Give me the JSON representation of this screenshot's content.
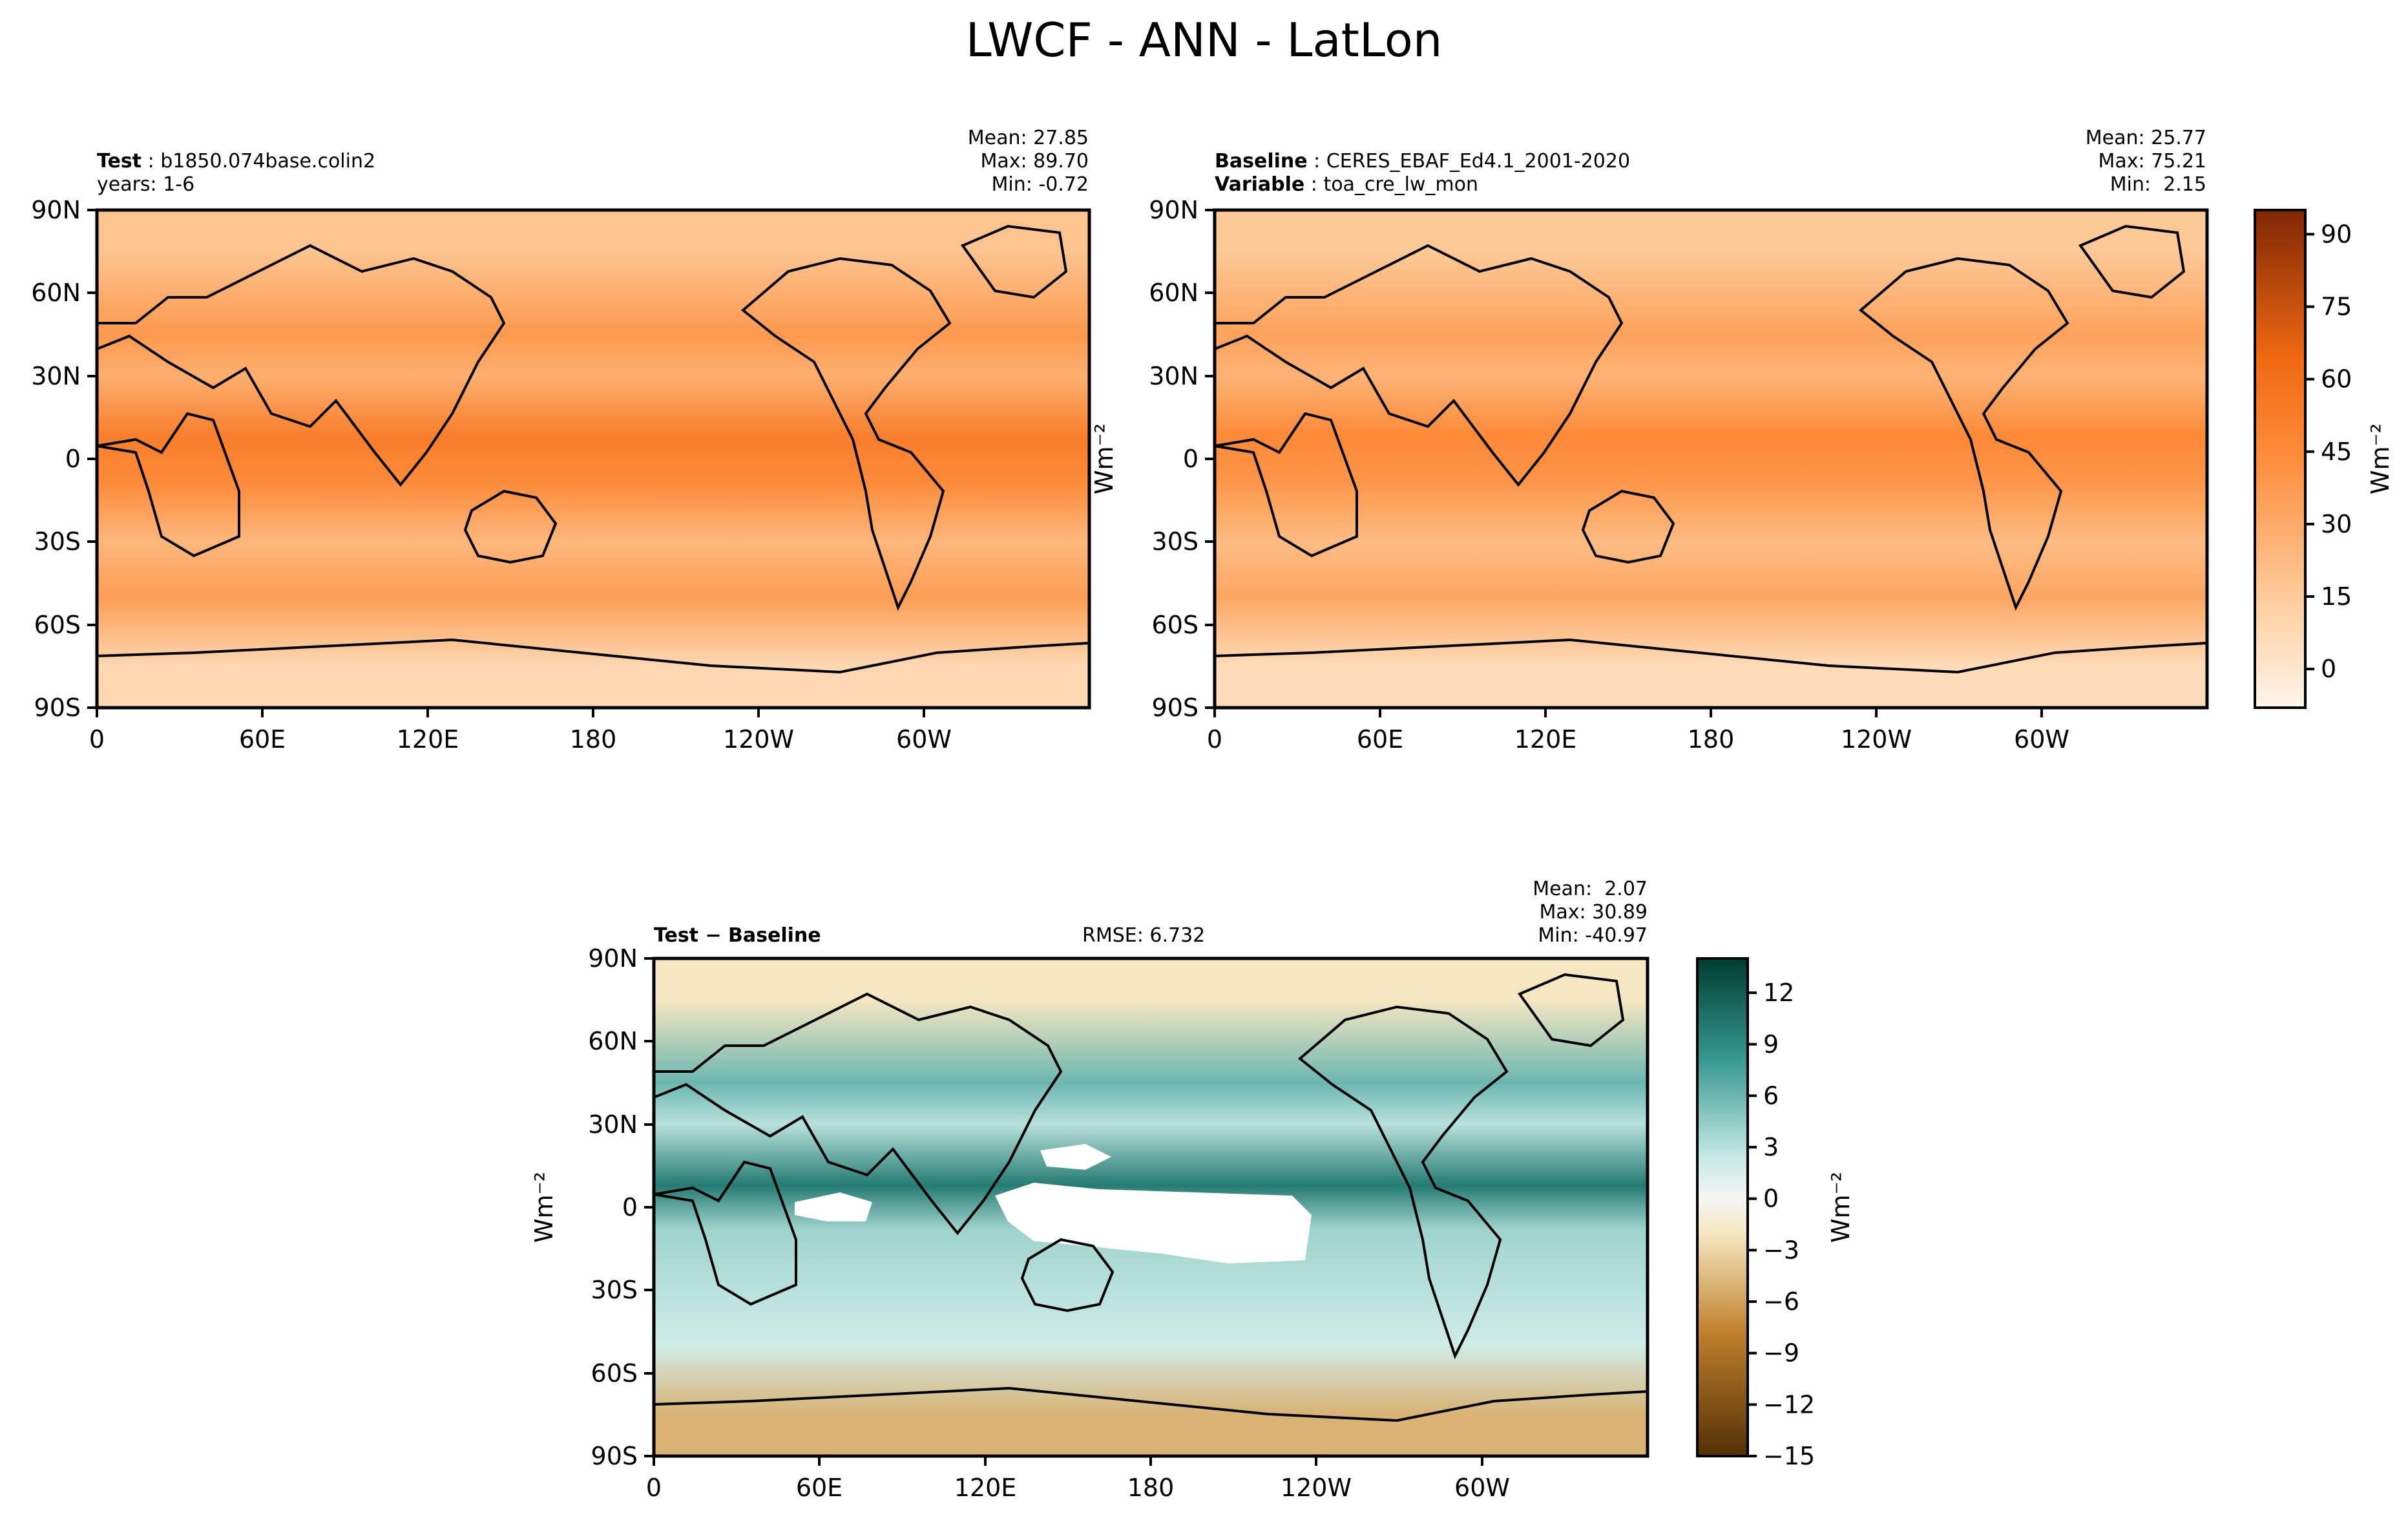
{
  "figure_title": "LWCF - ANN - LatLon",
  "chart_data": [
    {
      "type": "heatmap",
      "panel": "Test",
      "label_bold": "Test",
      "label_value": "b1850.074base.colin2",
      "label_line2": "years: 1-6",
      "stats": {
        "mean": "Mean: 27.85",
        "max": "Max: 89.70",
        "min": "Min: -0.72"
      },
      "x_ticks": [
        "0",
        "60E",
        "120E",
        "180",
        "120W",
        "60W"
      ],
      "y_ticks": [
        "90N",
        "60N",
        "30N",
        "0",
        "30S",
        "60S",
        "90S"
      ],
      "xlim": [
        0,
        360
      ],
      "ylim": [
        -90,
        90
      ],
      "colormap": "Oranges",
      "bands": [
        {
          "lat": 75,
          "value": 18
        },
        {
          "lat": 45,
          "value": 38
        },
        {
          "lat": 30,
          "value": 28
        },
        {
          "lat": 8,
          "value": 52
        },
        {
          "lat": -8,
          "value": 45
        },
        {
          "lat": -30,
          "value": 24
        },
        {
          "lat": -50,
          "value": 36
        },
        {
          "lat": -75,
          "value": 8
        }
      ]
    },
    {
      "type": "heatmap",
      "panel": "Baseline",
      "label_bold": "Baseline",
      "label_value": "CERES_EBAF_Ed4.1_2001-2020",
      "label2_bold": "Variable",
      "label2_value": "toa_cre_lw_mon",
      "stats": {
        "mean": "Mean: 25.77",
        "max": "Max: 75.21",
        "min": "Min:  2.15"
      },
      "x_ticks": [
        "0",
        "60E",
        "120E",
        "180",
        "120W",
        "60W"
      ],
      "y_ticks": [
        "90N",
        "60N",
        "30N",
        "0",
        "30S",
        "60S",
        "90S"
      ],
      "xlim": [
        0,
        360
      ],
      "ylim": [
        -90,
        90
      ],
      "colormap": "Oranges",
      "colorbar": {
        "ticks": [
          "90",
          "75",
          "60",
          "45",
          "30",
          "15",
          "0"
        ],
        "tick_values": [
          90,
          75,
          60,
          45,
          30,
          15,
          0
        ],
        "range": [
          -8,
          95
        ],
        "label": "Wm$^{-2}$"
      },
      "bands": [
        {
          "lat": 75,
          "value": 16
        },
        {
          "lat": 45,
          "value": 34
        },
        {
          "lat": 30,
          "value": 26
        },
        {
          "lat": 8,
          "value": 46
        },
        {
          "lat": -8,
          "value": 40
        },
        {
          "lat": -30,
          "value": 22
        },
        {
          "lat": -50,
          "value": 32
        },
        {
          "lat": -75,
          "value": 6
        }
      ]
    },
    {
      "type": "heatmap",
      "panel": "Test-Baseline",
      "label_bold": "Test − Baseline",
      "rmse": "RMSE: 6.732",
      "stats": {
        "mean": "Mean:  2.07",
        "max": "Max: 30.89",
        "min": "Min: -40.97"
      },
      "x_ticks": [
        "0",
        "60E",
        "120E",
        "180",
        "120W",
        "60W"
      ],
      "y_ticks": [
        "90N",
        "60N",
        "30N",
        "0",
        "30S",
        "60S",
        "90S"
      ],
      "xlim": [
        0,
        360
      ],
      "ylim": [
        -90,
        90
      ],
      "colormap": "BrBG",
      "colorbar": {
        "ticks": [
          "12",
          "9",
          "6",
          "3",
          "0",
          "−3",
          "−6",
          "−9",
          "−12",
          "−15"
        ],
        "tick_values": [
          12,
          9,
          6,
          3,
          0,
          -3,
          -6,
          -9,
          -12,
          -15
        ],
        "range": [
          -15,
          14
        ],
        "label": "Wm$^{-2}$"
      },
      "bands": [
        {
          "lat": 75,
          "value": -2
        },
        {
          "lat": 45,
          "value": 6
        },
        {
          "lat": 30,
          "value": 3
        },
        {
          "lat": 8,
          "value": 10
        },
        {
          "lat": -8,
          "value": 4
        },
        {
          "lat": -30,
          "value": 3
        },
        {
          "lat": -50,
          "value": 2
        },
        {
          "lat": -75,
          "value": -5
        }
      ]
    }
  ],
  "y_axis_label": "Wm⁻²",
  "colors": {
    "orange_dark": "#7f2704",
    "orange_mid": "#f16913",
    "orange_light": "#fdd0a2",
    "teal_dark": "#003c30",
    "brown_dark": "#543005",
    "neutral": "#f5f5f5"
  }
}
